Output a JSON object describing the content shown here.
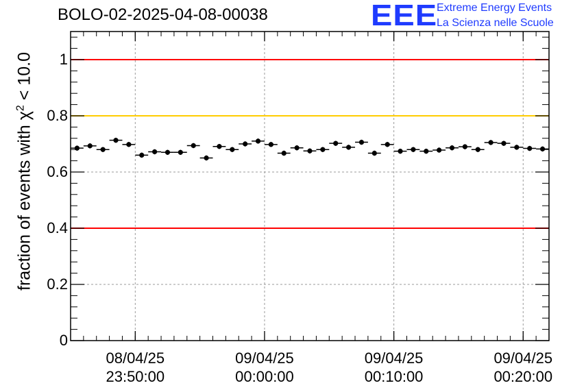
{
  "header": {
    "title": "BOLO-02-2025-04-08-00038",
    "logo_text": "EEE",
    "logo_line1": "Extreme Energy Events",
    "logo_line2": "La Scienza nelle Scuole"
  },
  "colors": {
    "red_line": "#ff0000",
    "orange_line": "#ffcc00",
    "points": "#000000",
    "logo": "#1f3bff"
  },
  "chart_data": {
    "type": "scatter",
    "title": "BOLO-02-2025-04-08-00038",
    "ylabel_prefix": "fraction of events with",
    "ylabel_symbol": "χ",
    "ylabel_power": "2",
    "ylabel_suffix": "< 10.0",
    "ylim": [
      0,
      1.1
    ],
    "yticks": [
      {
        "value": 0,
        "label": "0"
      },
      {
        "value": 0.2,
        "label": "0.2"
      },
      {
        "value": 0.4,
        "label": "0.4"
      },
      {
        "value": 0.6,
        "label": "0.6"
      },
      {
        "value": 0.8,
        "label": "0.8"
      },
      {
        "value": 1.0,
        "label": "1"
      }
    ],
    "xlim": [
      "08/04/25 23:45:00",
      "09/04/25 00:22:00"
    ],
    "xticks": [
      {
        "date": "08/04/25",
        "time": "23:50:00"
      },
      {
        "date": "09/04/25",
        "time": "00:00:00"
      },
      {
        "date": "09/04/25",
        "time": "00:10:00"
      },
      {
        "date": "09/04/25",
        "time": "00:20:00"
      }
    ],
    "grid": true,
    "reference_lines": [
      {
        "value": 1.0,
        "color": "red"
      },
      {
        "value": 0.8,
        "color": "orange"
      },
      {
        "value": 0.4,
        "color": "red"
      }
    ],
    "bin_width_seconds": 60,
    "x": [
      "23:45:30",
      "23:46:30",
      "23:47:30",
      "23:48:30",
      "23:49:30",
      "23:50:30",
      "23:51:30",
      "23:52:30",
      "23:53:30",
      "23:54:30",
      "23:55:30",
      "23:56:30",
      "23:57:30",
      "23:58:30",
      "23:59:30",
      "00:00:30",
      "00:01:30",
      "00:02:30",
      "00:03:30",
      "00:04:30",
      "00:05:30",
      "00:06:30",
      "00:07:30",
      "00:08:30",
      "00:09:30",
      "00:10:30",
      "00:11:30",
      "00:12:30",
      "00:13:30",
      "00:14:30",
      "00:15:30",
      "00:16:30",
      "00:17:30",
      "00:18:30",
      "00:19:30",
      "00:20:30",
      "00:21:30"
    ],
    "y": [
      0.685,
      0.693,
      0.68,
      0.713,
      0.698,
      0.66,
      0.672,
      0.67,
      0.67,
      0.694,
      0.65,
      0.691,
      0.68,
      0.7,
      0.71,
      0.698,
      0.667,
      0.686,
      0.675,
      0.68,
      0.702,
      0.688,
      0.706,
      0.667,
      0.698,
      0.674,
      0.68,
      0.674,
      0.678,
      0.686,
      0.69,
      0.68,
      0.705,
      0.702,
      0.688,
      0.684,
      0.682
    ],
    "yerr": 0.009
  }
}
